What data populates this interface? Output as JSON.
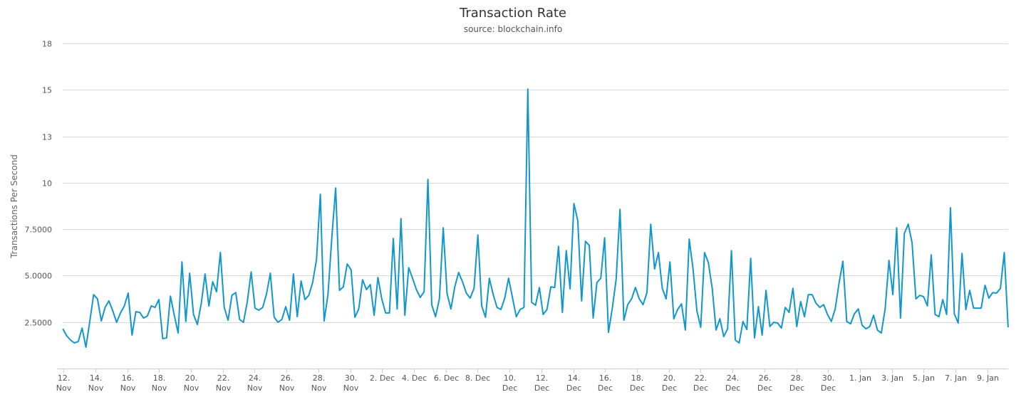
{
  "chart_data": {
    "type": "line",
    "title": "Transaction Rate",
    "subtitle": "source: blockchain.info",
    "xlabel": "",
    "ylabel": "Transactions Per Second",
    "ylim": [
      0,
      17.5
    ],
    "xlim_days_since_12_nov": [
      -0.05,
      59.3
    ],
    "grid": true,
    "legend": "none",
    "line_color": "#1197cc",
    "y_ticks": [
      {
        "value": 2.5,
        "label": "2.5000"
      },
      {
        "value": 5,
        "label": "5.0000"
      },
      {
        "value": 7.5,
        "label": "7.5000"
      },
      {
        "value": 10,
        "label": "10"
      },
      {
        "value": 12.5,
        "label": "13"
      },
      {
        "value": 15,
        "label": "15"
      },
      {
        "value": 17.5,
        "label": "18"
      }
    ],
    "x_ticks": [
      {
        "day": 0,
        "label": "12. Nov"
      },
      {
        "day": 2,
        "label": "14. Nov"
      },
      {
        "day": 4,
        "label": "16. Nov"
      },
      {
        "day": 6,
        "label": "18. Nov"
      },
      {
        "day": 8,
        "label": "20. Nov"
      },
      {
        "day": 10,
        "label": "22. Nov"
      },
      {
        "day": 12,
        "label": "24. Nov"
      },
      {
        "day": 14,
        "label": "26. Nov"
      },
      {
        "day": 16,
        "label": "28. Nov"
      },
      {
        "day": 18,
        "label": "30. Nov"
      },
      {
        "day": 20,
        "label": "2. Dec"
      },
      {
        "day": 22,
        "label": "4. Dec"
      },
      {
        "day": 24,
        "label": "6. Dec"
      },
      {
        "day": 26,
        "label": "8. Dec"
      },
      {
        "day": 28,
        "label": "10. Dec"
      },
      {
        "day": 30,
        "label": "12. Dec"
      },
      {
        "day": 32,
        "label": "14. Dec"
      },
      {
        "day": 34,
        "label": "16. Dec"
      },
      {
        "day": 36,
        "label": "18. Dec"
      },
      {
        "day": 38,
        "label": "20. Dec"
      },
      {
        "day": 40,
        "label": "22. Dec"
      },
      {
        "day": 42,
        "label": "24. Dec"
      },
      {
        "day": 44,
        "label": "26. Dec"
      },
      {
        "day": 46,
        "label": "28. Dec"
      },
      {
        "day": 48,
        "label": "30. Dec"
      },
      {
        "day": 50,
        "label": "1. Jan"
      },
      {
        "day": 52,
        "label": "3. Jan"
      },
      {
        "day": 54,
        "label": "5. Jan"
      },
      {
        "day": 56,
        "label": "7. Jan"
      },
      {
        "day": 58,
        "label": "9. Jan"
      }
    ],
    "x_start_day": -0.04,
    "x_step_days": 0.2412,
    "series": [
      {
        "name": "Transactions Per Second",
        "values": [
          2.14,
          1.76,
          1.53,
          1.38,
          1.45,
          2.18,
          1.15,
          2.53,
          3.98,
          3.75,
          2.56,
          3.29,
          3.64,
          3.1,
          2.49,
          2.99,
          3.37,
          4.06,
          1.8,
          3.06,
          3.02,
          2.72,
          2.83,
          3.37,
          3.29,
          3.71,
          1.61,
          1.65,
          3.9,
          2.87,
          1.91,
          5.74,
          2.53,
          5.13,
          2.91,
          2.37,
          3.48,
          5.09,
          3.37,
          4.67,
          4.13,
          6.24,
          3.29,
          2.6,
          3.94,
          4.09,
          2.64,
          2.49,
          3.6,
          5.2,
          3.25,
          3.14,
          3.29,
          4.02,
          5.13,
          2.76,
          2.49,
          2.64,
          3.33,
          2.6,
          5.09,
          2.79,
          4.71,
          3.71,
          3.94,
          4.63,
          5.86,
          9.38,
          2.56,
          3.98,
          7.04,
          9.72,
          4.21,
          4.4,
          5.63,
          5.32,
          2.76,
          3.21,
          4.78,
          4.25,
          4.52,
          2.87,
          4.9,
          3.75,
          2.99,
          2.99,
          7.0,
          3.21,
          8.07,
          2.87,
          5.43,
          4.86,
          4.25,
          3.83,
          4.13,
          10.18,
          3.44,
          2.79,
          3.75,
          7.58,
          4.02,
          3.21,
          4.4,
          5.17,
          4.67,
          4.06,
          3.79,
          4.32,
          7.19,
          3.37,
          2.76,
          4.86,
          3.98,
          3.29,
          3.18,
          3.79,
          4.86,
          3.83,
          2.79,
          3.18,
          3.29,
          15.04,
          3.56,
          3.41,
          4.36,
          2.91,
          3.18,
          4.4,
          4.36,
          6.58,
          3.02,
          6.35,
          4.29,
          8.88,
          7.96,
          3.64,
          6.85,
          6.62,
          2.72,
          4.63,
          4.86,
          7.04,
          1.95,
          3.25,
          4.82,
          8.57,
          2.6,
          3.44,
          3.75,
          4.36,
          3.75,
          3.44,
          4.09,
          7.77,
          5.36,
          6.24,
          4.32,
          3.75,
          5.74,
          2.68,
          3.18,
          3.48,
          2.07,
          6.97,
          5.36,
          3.1,
          2.22,
          6.24,
          5.7,
          4.32,
          2.07,
          2.68,
          1.72,
          2.14,
          6.35,
          1.53,
          1.38,
          2.53,
          2.1,
          5.93,
          1.65,
          3.33,
          1.8,
          4.21,
          2.26,
          2.49,
          2.45,
          2.18,
          3.29,
          3.02,
          4.32,
          2.26,
          3.6,
          2.79,
          3.98,
          3.98,
          3.52,
          3.29,
          3.44,
          2.91,
          2.53,
          3.21,
          4.59,
          5.78,
          2.53,
          2.41,
          2.95,
          3.21,
          2.33,
          2.14,
          2.26,
          2.87,
          2.07,
          1.91,
          3.21,
          5.82,
          3.98,
          7.58,
          2.72,
          7.27,
          7.77,
          6.77,
          3.75,
          3.94,
          3.87,
          3.37,
          6.12,
          2.91,
          2.79,
          3.71,
          2.91,
          8.65,
          2.95,
          2.45,
          6.2,
          3.18,
          4.21,
          3.25,
          3.25,
          3.25,
          4.48,
          3.79,
          4.09,
          4.06,
          4.32,
          6.24,
          2.22
        ]
      }
    ]
  }
}
